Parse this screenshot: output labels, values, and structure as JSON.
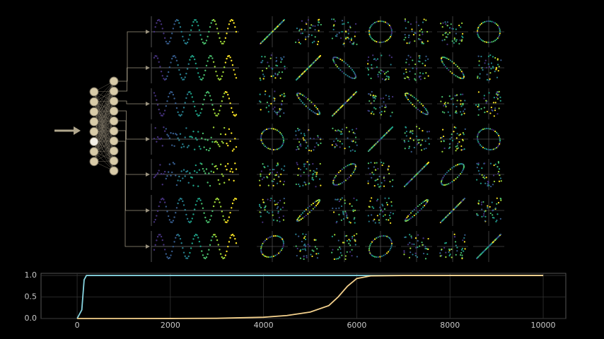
{
  "chart_data": {
    "type": "line",
    "x": [
      0,
      100,
      150,
      200,
      1000,
      2000,
      3000,
      4000,
      4500,
      5000,
      5400,
      5600,
      5800,
      6000,
      6300,
      7000,
      8000,
      10000
    ],
    "series": [
      {
        "color": "#86d3df",
        "values": [
          0,
          0.2,
          0.9,
          1,
          1,
          1,
          1,
          1,
          1,
          1,
          1,
          1,
          1,
          1,
          1,
          1,
          1,
          1
        ]
      },
      {
        "color": "#f3d08c",
        "values": [
          0,
          0,
          0,
          0,
          0,
          0.001,
          0.005,
          0.03,
          0.07,
          0.15,
          0.3,
          0.5,
          0.75,
          0.93,
          0.99,
          1,
          1,
          1
        ]
      }
    ],
    "xlim": [
      -775,
      10485
    ],
    "ylim": [
      0,
      1.05
    ],
    "xticks": [
      0,
      2000,
      4000,
      6000,
      8000,
      10000
    ],
    "yticks": [
      {
        "value": 0,
        "label": "0.0"
      },
      {
        "value": 0.5,
        "label": "0.5"
      },
      {
        "value": 1,
        "label": "1.0"
      }
    ],
    "grid": true
  }
}
